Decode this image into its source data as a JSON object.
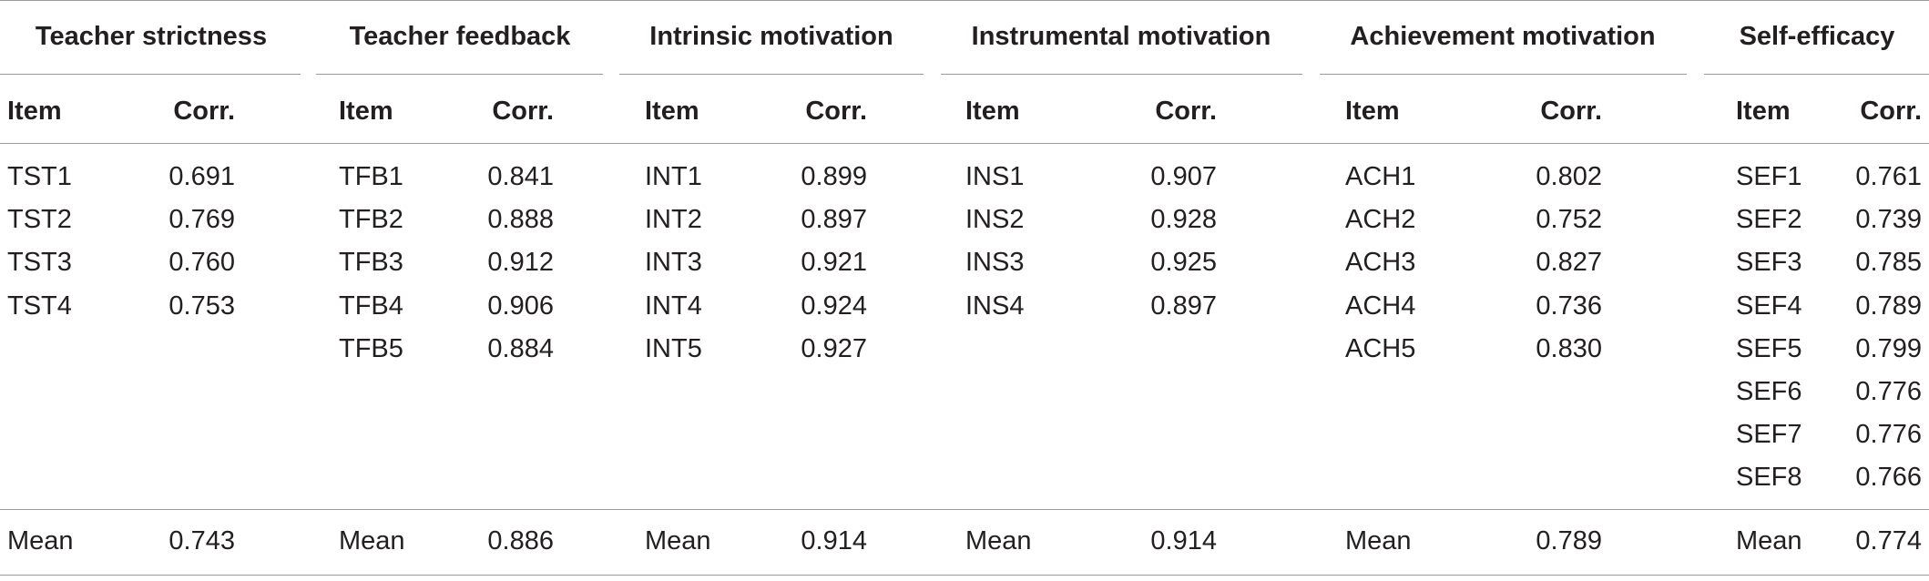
{
  "table": {
    "item_label": "Item",
    "corr_label": "Corr.",
    "mean_label": "Mean",
    "groups": [
      {
        "title": "Teacher strictness",
        "rows": [
          {
            "item": "TST1",
            "corr": "0.691"
          },
          {
            "item": "TST2",
            "corr": "0.769"
          },
          {
            "item": "TST3",
            "corr": "0.760"
          },
          {
            "item": "TST4",
            "corr": "0.753"
          }
        ],
        "mean": "0.743"
      },
      {
        "title": "Teacher feedback",
        "rows": [
          {
            "item": "TFB1",
            "corr": "0.841"
          },
          {
            "item": "TFB2",
            "corr": "0.888"
          },
          {
            "item": "TFB3",
            "corr": "0.912"
          },
          {
            "item": "TFB4",
            "corr": "0.906"
          },
          {
            "item": "TFB5",
            "corr": "0.884"
          }
        ],
        "mean": "0.886"
      },
      {
        "title": "Intrinsic motivation",
        "rows": [
          {
            "item": "INT1",
            "corr": "0.899"
          },
          {
            "item": "INT2",
            "corr": "0.897"
          },
          {
            "item": "INT3",
            "corr": "0.921"
          },
          {
            "item": "INT4",
            "corr": "0.924"
          },
          {
            "item": "INT5",
            "corr": "0.927"
          }
        ],
        "mean": "0.914"
      },
      {
        "title": "Instrumental motivation",
        "rows": [
          {
            "item": "INS1",
            "corr": "0.907"
          },
          {
            "item": "INS2",
            "corr": "0.928"
          },
          {
            "item": "INS3",
            "corr": "0.925"
          },
          {
            "item": "INS4",
            "corr": "0.897"
          }
        ],
        "mean": "0.914"
      },
      {
        "title": "Achievement motivation",
        "rows": [
          {
            "item": "ACH1",
            "corr": "0.802"
          },
          {
            "item": "ACH2",
            "corr": "0.752"
          },
          {
            "item": "ACH3",
            "corr": "0.827"
          },
          {
            "item": "ACH4",
            "corr": "0.736"
          },
          {
            "item": "ACH5",
            "corr": "0.830"
          }
        ],
        "mean": "0.789"
      },
      {
        "title": "Self-efficacy",
        "rows": [
          {
            "item": "SEF1",
            "corr": "0.761"
          },
          {
            "item": "SEF2",
            "corr": "0.739"
          },
          {
            "item": "SEF3",
            "corr": "0.785"
          },
          {
            "item": "SEF4",
            "corr": "0.789"
          },
          {
            "item": "SEF5",
            "corr": "0.799"
          },
          {
            "item": "SEF6",
            "corr": "0.776"
          },
          {
            "item": "SEF7",
            "corr": "0.776"
          },
          {
            "item": "SEF8",
            "corr": "0.766"
          }
        ],
        "mean": "0.774"
      }
    ]
  }
}
